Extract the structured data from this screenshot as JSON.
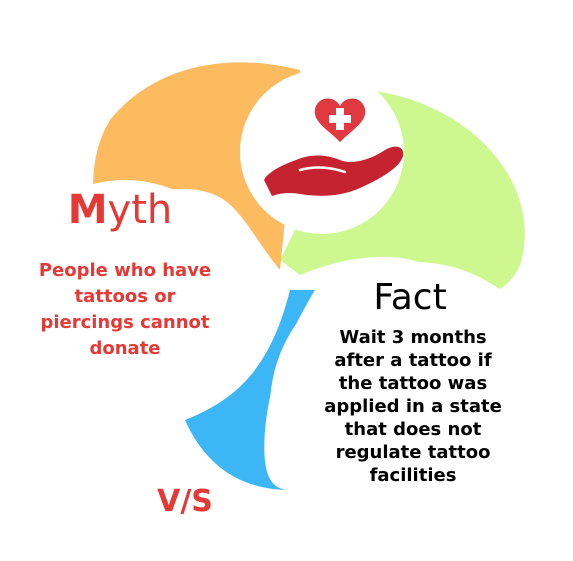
{
  "myth": {
    "title_first_letter": "M",
    "title_rest": "yth",
    "lines": [
      "People who have",
      "tattoos or",
      "piercings cannot",
      "donate"
    ]
  },
  "fact": {
    "title": "Fact",
    "lines": [
      "Wait 3 months",
      "after a tattoo if",
      "the tattoo was",
      "applied in a state",
      "that does not",
      "regulate tattoo",
      "facilities"
    ]
  },
  "vs_label": "V/S",
  "icon": "heart-in-hand-medical-icon",
  "colors": {
    "myth_red": "#e53935",
    "orange_shape": "#fdbb5f",
    "green_shape": "#cdf78f",
    "blue_shape": "#3cb6f5",
    "hand_red": "#c62331",
    "heart_red": "#e0393f"
  }
}
